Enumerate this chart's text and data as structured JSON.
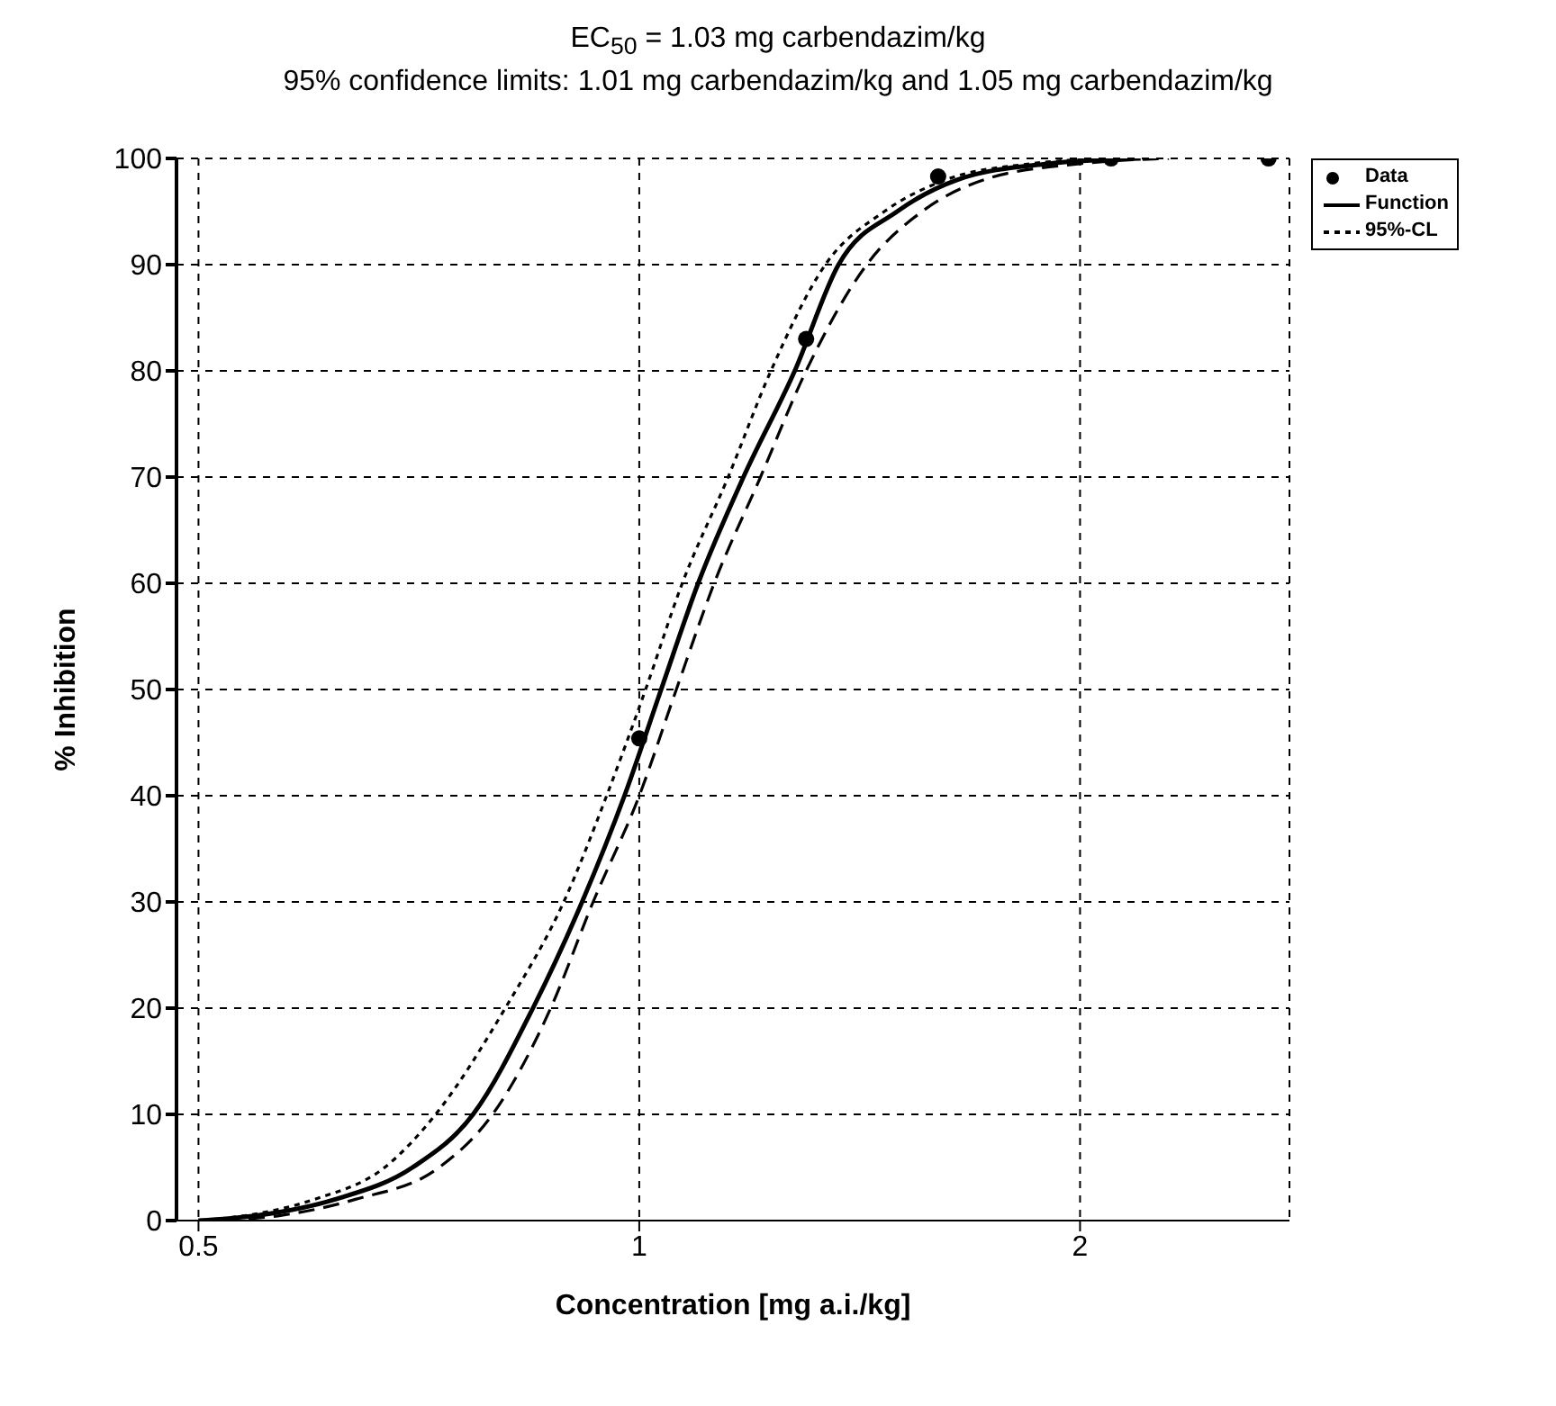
{
  "chart_data": {
    "type": "line",
    "title": "EC$_{50}$ = 1.03 mg carbendazim/kg",
    "subtitle": "95% confidence limits: 1.01 mg carbendazim/kg and 1.05 mg carbendazim/kg",
    "xlabel": "Concentration [mg a.i./kg]",
    "ylabel": "% Inhibition",
    "log": "x",
    "xlim": [
      0.483,
      2.78
    ],
    "xticks": [
      0.5,
      1,
      2
    ],
    "ylim": [
      0,
      100
    ],
    "yticks": [
      0,
      10,
      20,
      30,
      40,
      50,
      60,
      70,
      80,
      90,
      100
    ],
    "grid": true,
    "legend": "top right",
    "series": [
      {
        "name": "Data",
        "type": "scatter",
        "marker": "circle",
        "color": "#000000",
        "x": [
          1,
          1.3,
          1.6,
          2.1,
          2.69
        ],
        "values": [
          45.4,
          83,
          98.3,
          100,
          100
        ]
      },
      {
        "name": "Function",
        "line_style": "solid",
        "color": "#000000",
        "x": [
          0.5,
          0.55,
          0.62,
          0.7,
          0.77,
          0.846,
          0.914,
          0.977,
          1.035,
          1.097,
          1.178,
          1.277,
          1.368,
          1.5,
          1.65,
          1.9,
          2.2
        ],
        "values": [
          0,
          0.5,
          2,
          5,
          10,
          20,
          30,
          40,
          50,
          60,
          70,
          80,
          90,
          95,
          98,
          99.5,
          100
        ]
      },
      {
        "name": "95%-CL",
        "line_style": "dotted",
        "color": "#000000",
        "x": [
          0.5,
          0.54,
          0.6,
          0.67,
          0.726,
          0.81,
          0.888,
          0.95,
          1.01,
          1.07,
          1.15,
          1.23,
          1.34,
          1.47,
          1.62,
          1.85,
          2.1
        ],
        "values": [
          0,
          0.5,
          2,
          5,
          10,
          20,
          30,
          40,
          50,
          60,
          70,
          80,
          90,
          95,
          98,
          99.5,
          100
        ]
      },
      {
        "line_style": "dashed",
        "color": "#000000",
        "x": [
          0.52,
          0.57,
          0.64,
          0.73,
          0.794,
          0.87,
          0.93,
          1.0,
          1.06,
          1.125,
          1.21,
          1.3,
          1.43,
          1.56,
          1.72,
          2.0,
          2.3
        ],
        "values": [
          0,
          0.5,
          2,
          5,
          10,
          20,
          30,
          40,
          50,
          60,
          70,
          80,
          90,
          95,
          98,
          99.5,
          100
        ]
      }
    ]
  }
}
